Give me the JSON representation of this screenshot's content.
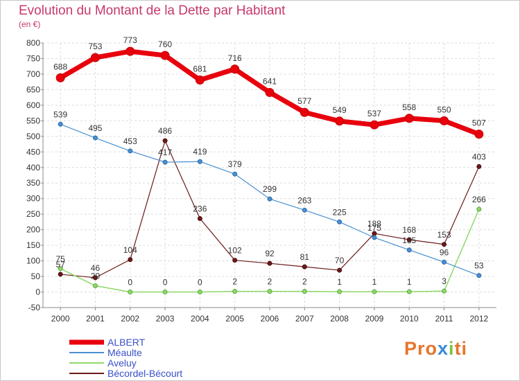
{
  "chart_data": {
    "type": "line",
    "title": "Evolution du Montant de la Dette par Habitant",
    "subtitle": "(en €)",
    "xlabel": "",
    "ylabel": "",
    "x": [
      "2000",
      "2001",
      "2002",
      "2003",
      "2004",
      "2005",
      "2006",
      "2007",
      "2008",
      "2009",
      "2010",
      "2011",
      "2012"
    ],
    "ylim": [
      -50,
      800
    ],
    "yticks": [
      -50,
      0,
      50,
      100,
      150,
      200,
      250,
      300,
      350,
      400,
      450,
      500,
      550,
      600,
      650,
      700,
      750,
      800
    ],
    "grid": true,
    "legend_position": "bottom-left",
    "series": [
      {
        "name": "ALBERT",
        "color": "#e8000d",
        "values": [
          688,
          753,
          773,
          760,
          681,
          716,
          641,
          577,
          549,
          537,
          558,
          550,
          507
        ]
      },
      {
        "name": "Méaulte",
        "color": "#4a8fd0",
        "values": [
          539,
          495,
          453,
          417,
          419,
          379,
          299,
          263,
          225,
          175,
          135,
          96,
          53
        ]
      },
      {
        "name": "Aveluy",
        "color": "#8ed86a",
        "values": [
          75,
          20,
          0,
          0,
          0,
          2,
          2,
          2,
          1,
          1,
          1,
          3,
          266
        ]
      },
      {
        "name": "Bécordel-Bécourt",
        "color": "#6b1a1a",
        "values": [
          57,
          46,
          104,
          486,
          236,
          102,
          92,
          81,
          70,
          188,
          168,
          153,
          403
        ]
      }
    ],
    "label_values": {
      "ALBERT": [
        688,
        753,
        773,
        760,
        681,
        716,
        641,
        577,
        549,
        537,
        558,
        550,
        507
      ],
      "Méaulte": [
        539,
        495,
        453,
        417,
        419,
        379,
        299,
        263,
        225,
        175,
        135,
        96,
        53
      ],
      "Aveluy": [
        75,
        20,
        0,
        0,
        0,
        2,
        2,
        2,
        1,
        1,
        1,
        3,
        266
      ],
      "Bécordel-Bécourt": [
        57,
        46,
        104,
        486,
        236,
        102,
        92,
        81,
        70,
        188,
        168,
        153,
        403
      ]
    },
    "logo_text": [
      "Pro",
      "x",
      "i",
      "ti"
    ]
  }
}
